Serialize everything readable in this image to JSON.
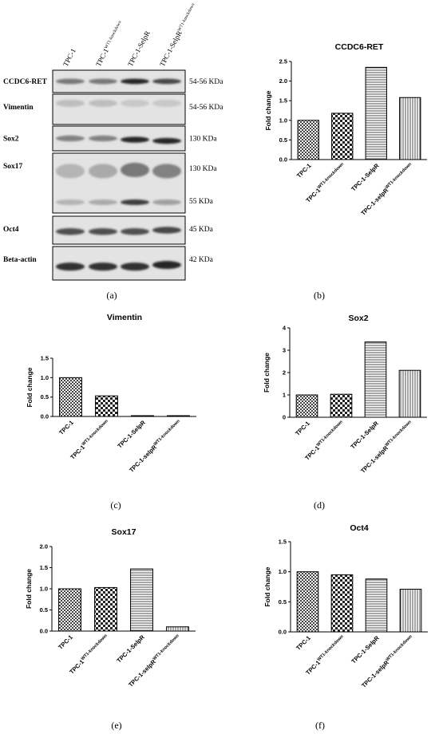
{
  "western_blot": {
    "lanes": [
      {
        "main": "TPC-1",
        "sup": ""
      },
      {
        "main": "TPC-1",
        "sup": "WT1-knockdown"
      },
      {
        "main": "TPC-1-SelpR",
        "sup": ""
      },
      {
        "main": "TPC-1-SelpR",
        "sup": "WT1-knockdown"
      }
    ],
    "rows": [
      {
        "name": "CCDC6-RET",
        "sizes": [
          "54-56 KDa"
        ]
      },
      {
        "name": "Vimentin",
        "sizes": [
          "54-56 KDa"
        ]
      },
      {
        "name": "Sox2",
        "sizes": [
          "130 KDa"
        ]
      },
      {
        "name": "Sox17",
        "sizes": [
          "130 KDa",
          "55 KDa"
        ]
      },
      {
        "name": "Oct4",
        "sizes": [
          "45 KDa"
        ]
      },
      {
        "name": "Beta-actin",
        "sizes": [
          "42 KDa"
        ]
      }
    ],
    "panel_letter": "(a)"
  },
  "chart_data": [
    {
      "type": "bar",
      "panel": "(b)",
      "title": "CCDC6-RET",
      "ylabel": "Fold change",
      "ylim": [
        0,
        2.5
      ],
      "yticks": [
        "0.0",
        "0.5",
        "1.0",
        "1.5",
        "2.0",
        "2.5"
      ],
      "categories": [
        {
          "main": "TPC-1",
          "sup": ""
        },
        {
          "main": "TPC-1",
          "sup": "WT1-knockdown"
        },
        {
          "main": "TPC-1-SelpR",
          "sup": ""
        },
        {
          "main": "TPC-1-selpR",
          "sup": "WT1-knockdown"
        }
      ],
      "values": [
        1.0,
        1.18,
        2.35,
        1.58
      ]
    },
    {
      "type": "bar",
      "panel": "(c)",
      "title": "Vimentin",
      "ylabel": "Fold change",
      "ylim": [
        0,
        1.5
      ],
      "yticks": [
        "0.0",
        "0.5",
        "1.0",
        "1.5"
      ],
      "categories": [
        {
          "main": "TPC-1",
          "sup": ""
        },
        {
          "main": "TPC-1",
          "sup": "WT1-knockdown"
        },
        {
          "main": "TPC-1-SelpR",
          "sup": ""
        },
        {
          "main": "TPC-1-selpR",
          "sup": "WT1-knockdown"
        }
      ],
      "values": [
        1.0,
        0.53,
        0.01,
        0.01
      ]
    },
    {
      "type": "bar",
      "panel": "(d)",
      "title": "Sox2",
      "ylabel": "Fold change",
      "ylim": [
        0,
        4
      ],
      "yticks": [
        "0",
        "1",
        "2",
        "3",
        "4"
      ],
      "categories": [
        {
          "main": "TPC-1",
          "sup": ""
        },
        {
          "main": "TPC-1",
          "sup": "WT1-knockdown"
        },
        {
          "main": "TPC-1-SelpR",
          "sup": ""
        },
        {
          "main": "TPC-1-selpR",
          "sup": "WT1-knockdown"
        }
      ],
      "values": [
        1.0,
        1.03,
        3.37,
        2.1
      ]
    },
    {
      "type": "bar",
      "panel": "(e)",
      "title": "Sox17",
      "ylabel": "Fold change",
      "ylim": [
        0,
        2.0
      ],
      "yticks": [
        "0.0",
        "0.5",
        "1.0",
        "1.5",
        "2.0"
      ],
      "categories": [
        {
          "main": "TPC-1",
          "sup": ""
        },
        {
          "main": "TPC-1",
          "sup": "WT1-knockdown"
        },
        {
          "main": "TPC-1-SelpR",
          "sup": ""
        },
        {
          "main": "TPC-1-selpR",
          "sup": "WT1-knockdown"
        }
      ],
      "values": [
        1.0,
        1.03,
        1.47,
        0.1
      ]
    },
    {
      "type": "bar",
      "panel": "(f)",
      "title": "Oct4",
      "ylabel": "Fold change",
      "ylim": [
        0,
        1.5
      ],
      "yticks": [
        "0.0",
        "0.5",
        "1.0",
        "1.5"
      ],
      "categories": [
        {
          "main": "TPC-1",
          "sup": ""
        },
        {
          "main": "TPC-1",
          "sup": "WT1-knockdown"
        },
        {
          "main": "TPC-1-SelpR",
          "sup": ""
        },
        {
          "main": "TPC-1-selpR",
          "sup": "WT1-knockdown"
        }
      ],
      "values": [
        1.0,
        0.95,
        0.88,
        0.71
      ]
    }
  ]
}
